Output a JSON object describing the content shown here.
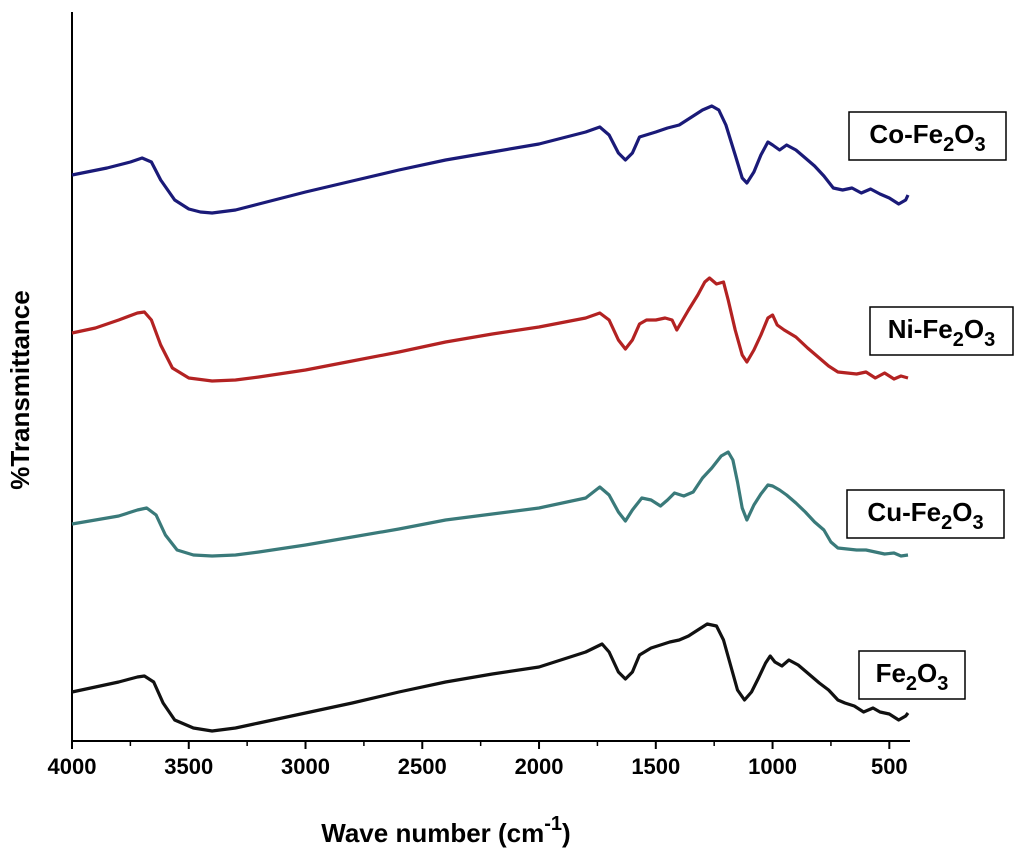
{
  "chart_data": {
    "type": "line",
    "xlabel": "Wave number (cm",
    "xlabel_sup": "-1",
    "xlabel_close": ")",
    "ylabel": "%Transmittance",
    "xlim": [
      4000,
      420
    ],
    "x_reversed": true,
    "x_ticks": [
      4000,
      3500,
      3000,
      2500,
      2000,
      1500,
      1000,
      500
    ],
    "y_ticks_shown": false,
    "grid": false,
    "legend": "per-series label boxes at right end of each trace",
    "series": [
      {
        "name": "Co-Fe2O3",
        "label_parts": [
          "Co-Fe",
          "2",
          "O",
          "3"
        ],
        "color": "#1a1a78",
        "points": [
          [
            4000,
            175
          ],
          [
            3850,
            168
          ],
          [
            3750,
            162
          ],
          [
            3700,
            158
          ],
          [
            3660,
            162
          ],
          [
            3620,
            180
          ],
          [
            3560,
            200
          ],
          [
            3500,
            209
          ],
          [
            3450,
            212
          ],
          [
            3400,
            213
          ],
          [
            3300,
            210
          ],
          [
            3200,
            204
          ],
          [
            3000,
            192
          ],
          [
            2800,
            181
          ],
          [
            2600,
            170
          ],
          [
            2400,
            160
          ],
          [
            2200,
            152
          ],
          [
            2000,
            144
          ],
          [
            1800,
            132
          ],
          [
            1740,
            127
          ],
          [
            1700,
            135
          ],
          [
            1660,
            153
          ],
          [
            1630,
            160
          ],
          [
            1600,
            153
          ],
          [
            1570,
            137
          ],
          [
            1500,
            132
          ],
          [
            1450,
            128
          ],
          [
            1400,
            125
          ],
          [
            1340,
            116
          ],
          [
            1300,
            110
          ],
          [
            1260,
            106
          ],
          [
            1230,
            110
          ],
          [
            1200,
            125
          ],
          [
            1160,
            155
          ],
          [
            1130,
            178
          ],
          [
            1110,
            183
          ],
          [
            1080,
            172
          ],
          [
            1050,
            155
          ],
          [
            1020,
            142
          ],
          [
            1000,
            145
          ],
          [
            970,
            150
          ],
          [
            940,
            145
          ],
          [
            900,
            150
          ],
          [
            860,
            158
          ],
          [
            820,
            166
          ],
          [
            780,
            176
          ],
          [
            740,
            188
          ],
          [
            700,
            190
          ],
          [
            660,
            188
          ],
          [
            620,
            193
          ],
          [
            580,
            189
          ],
          [
            540,
            194
          ],
          [
            500,
            198
          ],
          [
            460,
            204
          ],
          [
            430,
            200
          ],
          [
            420,
            195
          ]
        ]
      },
      {
        "name": "Ni-Fe2O3",
        "label_parts": [
          "Ni-Fe",
          "2",
          "O",
          "3"
        ],
        "color": "#b32222",
        "points": [
          [
            4000,
            333
          ],
          [
            3900,
            328
          ],
          [
            3800,
            320
          ],
          [
            3720,
            313
          ],
          [
            3690,
            312
          ],
          [
            3660,
            320
          ],
          [
            3620,
            345
          ],
          [
            3570,
            368
          ],
          [
            3500,
            378
          ],
          [
            3400,
            381
          ],
          [
            3300,
            380
          ],
          [
            3200,
            377
          ],
          [
            3000,
            370
          ],
          [
            2800,
            361
          ],
          [
            2600,
            352
          ],
          [
            2400,
            342
          ],
          [
            2200,
            334
          ],
          [
            2000,
            327
          ],
          [
            1800,
            318
          ],
          [
            1740,
            313
          ],
          [
            1700,
            320
          ],
          [
            1660,
            340
          ],
          [
            1630,
            349
          ],
          [
            1600,
            340
          ],
          [
            1570,
            324
          ],
          [
            1540,
            320
          ],
          [
            1500,
            320
          ],
          [
            1460,
            318
          ],
          [
            1430,
            320
          ],
          [
            1410,
            330
          ],
          [
            1390,
            322
          ],
          [
            1360,
            310
          ],
          [
            1320,
            295
          ],
          [
            1290,
            282
          ],
          [
            1270,
            278
          ],
          [
            1240,
            284
          ],
          [
            1210,
            282
          ],
          [
            1190,
            300
          ],
          [
            1160,
            330
          ],
          [
            1130,
            355
          ],
          [
            1110,
            362
          ],
          [
            1080,
            350
          ],
          [
            1050,
            335
          ],
          [
            1020,
            318
          ],
          [
            1000,
            315
          ],
          [
            980,
            325
          ],
          [
            950,
            330
          ],
          [
            900,
            337
          ],
          [
            850,
            348
          ],
          [
            800,
            358
          ],
          [
            760,
            366
          ],
          [
            720,
            372
          ],
          [
            680,
            373
          ],
          [
            640,
            374
          ],
          [
            600,
            372
          ],
          [
            560,
            378
          ],
          [
            520,
            373
          ],
          [
            480,
            379
          ],
          [
            450,
            376
          ],
          [
            420,
            378
          ]
        ]
      },
      {
        "name": "Cu-Fe2O3",
        "label_parts": [
          "Cu-Fe",
          "2",
          "O",
          "3"
        ],
        "color": "#3a7a7a",
        "points": [
          [
            4000,
            524
          ],
          [
            3900,
            520
          ],
          [
            3800,
            516
          ],
          [
            3720,
            510
          ],
          [
            3680,
            508
          ],
          [
            3640,
            515
          ],
          [
            3600,
            535
          ],
          [
            3550,
            550
          ],
          [
            3480,
            555
          ],
          [
            3400,
            556
          ],
          [
            3300,
            555
          ],
          [
            3200,
            552
          ],
          [
            3000,
            545
          ],
          [
            2800,
            537
          ],
          [
            2600,
            529
          ],
          [
            2400,
            520
          ],
          [
            2200,
            514
          ],
          [
            2000,
            508
          ],
          [
            1800,
            498
          ],
          [
            1740,
            487
          ],
          [
            1700,
            495
          ],
          [
            1660,
            512
          ],
          [
            1630,
            521
          ],
          [
            1600,
            510
          ],
          [
            1560,
            498
          ],
          [
            1520,
            500
          ],
          [
            1480,
            506
          ],
          [
            1450,
            500
          ],
          [
            1420,
            493
          ],
          [
            1380,
            496
          ],
          [
            1340,
            492
          ],
          [
            1300,
            478
          ],
          [
            1260,
            468
          ],
          [
            1220,
            456
          ],
          [
            1190,
            452
          ],
          [
            1170,
            460
          ],
          [
            1150,
            482
          ],
          [
            1130,
            508
          ],
          [
            1110,
            520
          ],
          [
            1080,
            505
          ],
          [
            1050,
            494
          ],
          [
            1020,
            485
          ],
          [
            1000,
            486
          ],
          [
            970,
            490
          ],
          [
            940,
            495
          ],
          [
            900,
            503
          ],
          [
            860,
            512
          ],
          [
            820,
            522
          ],
          [
            780,
            530
          ],
          [
            750,
            542
          ],
          [
            720,
            548
          ],
          [
            680,
            549
          ],
          [
            640,
            550
          ],
          [
            600,
            550
          ],
          [
            560,
            552
          ],
          [
            520,
            554
          ],
          [
            480,
            553
          ],
          [
            450,
            556
          ],
          [
            420,
            555
          ]
        ]
      },
      {
        "name": "Fe2O3",
        "label_parts": [
          "Fe",
          "2",
          "O",
          "3"
        ],
        "color": "#111111",
        "points": [
          [
            4000,
            692
          ],
          [
            3900,
            687
          ],
          [
            3800,
            682
          ],
          [
            3720,
            677
          ],
          [
            3690,
            676
          ],
          [
            3650,
            682
          ],
          [
            3610,
            703
          ],
          [
            3560,
            720
          ],
          [
            3480,
            728
          ],
          [
            3400,
            731
          ],
          [
            3300,
            728
          ],
          [
            3200,
            723
          ],
          [
            3000,
            713
          ],
          [
            2800,
            703
          ],
          [
            2600,
            692
          ],
          [
            2400,
            682
          ],
          [
            2200,
            674
          ],
          [
            2000,
            667
          ],
          [
            1800,
            652
          ],
          [
            1730,
            644
          ],
          [
            1700,
            652
          ],
          [
            1660,
            672
          ],
          [
            1630,
            679
          ],
          [
            1600,
            672
          ],
          [
            1570,
            655
          ],
          [
            1520,
            648
          ],
          [
            1480,
            645
          ],
          [
            1440,
            642
          ],
          [
            1400,
            640
          ],
          [
            1360,
            636
          ],
          [
            1320,
            630
          ],
          [
            1280,
            624
          ],
          [
            1240,
            626
          ],
          [
            1210,
            640
          ],
          [
            1180,
            665
          ],
          [
            1150,
            690
          ],
          [
            1120,
            700
          ],
          [
            1090,
            692
          ],
          [
            1060,
            678
          ],
          [
            1030,
            663
          ],
          [
            1010,
            656
          ],
          [
            990,
            662
          ],
          [
            960,
            666
          ],
          [
            930,
            660
          ],
          [
            890,
            665
          ],
          [
            850,
            673
          ],
          [
            800,
            683
          ],
          [
            760,
            690
          ],
          [
            720,
            700
          ],
          [
            690,
            703
          ],
          [
            650,
            706
          ],
          [
            610,
            712
          ],
          [
            570,
            708
          ],
          [
            540,
            712
          ],
          [
            500,
            714
          ],
          [
            460,
            720
          ],
          [
            430,
            716
          ],
          [
            420,
            713
          ]
        ]
      }
    ]
  }
}
